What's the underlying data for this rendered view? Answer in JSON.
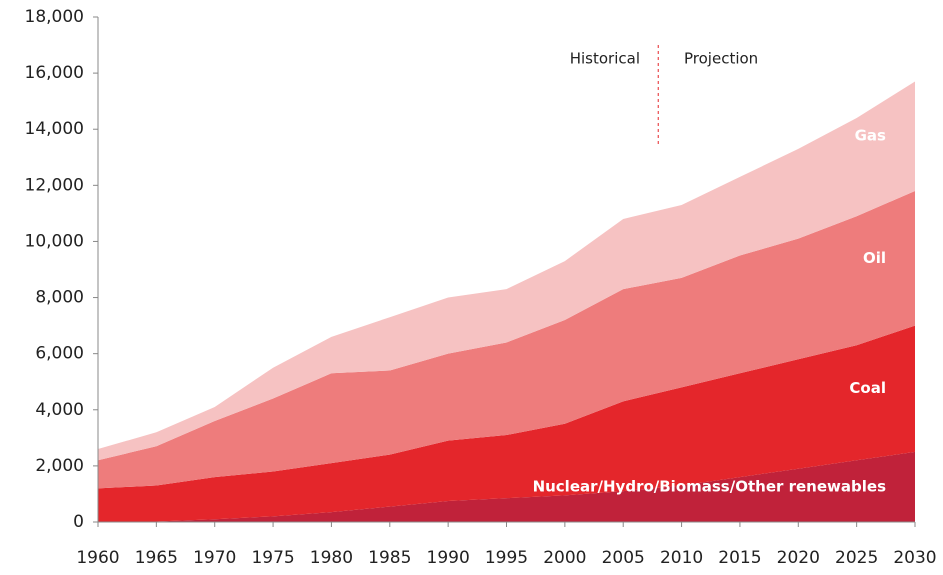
{
  "chart_data": {
    "type": "stacked_area",
    "x": [
      1960,
      1965,
      1970,
      1975,
      1980,
      1985,
      1990,
      1995,
      2000,
      2005,
      2010,
      2015,
      2020,
      2025,
      2030
    ],
    "series": [
      {
        "name": "Nuclear/Hydro/Biomass/Other renewables",
        "color": "#c0223a",
        "values": [
          0,
          20,
          100,
          200,
          350,
          550,
          750,
          850,
          950,
          1100,
          1300,
          1600,
          1900,
          2200,
          2500
        ]
      },
      {
        "name": "Coal",
        "color": "#e4262b",
        "values": [
          1200,
          1280,
          1500,
          1600,
          1750,
          1850,
          2150,
          2250,
          2550,
          3200,
          3500,
          3700,
          3900,
          4100,
          4500
        ]
      },
      {
        "name": "Oil",
        "color": "#ee7c7c",
        "values": [
          1000,
          1400,
          2000,
          2600,
          3200,
          3000,
          3100,
          3300,
          3700,
          4000,
          3900,
          4200,
          4300,
          4600,
          4800
        ]
      },
      {
        "name": "Gas",
        "color": "#f6c2c2",
        "values": [
          400,
          500,
          500,
          1100,
          1300,
          1900,
          2000,
          1900,
          2100,
          2500,
          2600,
          2800,
          3200,
          3500,
          3900
        ]
      }
    ],
    "xlim": [
      1960,
      2030
    ],
    "xticks": [
      1960,
      1965,
      1970,
      1975,
      1980,
      1985,
      1990,
      1995,
      2000,
      2005,
      2010,
      2015,
      2020,
      2025,
      2030
    ],
    "ylim": [
      0,
      18000
    ],
    "yticks": [
      0,
      {
        "value": 2000,
        "label": "2,000"
      },
      {
        "value": 4000,
        "label": "4,000"
      },
      {
        "value": 6000,
        "label": "6,000"
      },
      {
        "value": 8000,
        "label": "8,000"
      },
      {
        "value": 10000,
        "label": "10,000"
      },
      {
        "value": 12000,
        "label": "12,000"
      },
      {
        "value": 14000,
        "label": "14,000"
      },
      {
        "value": 16000,
        "label": "16,000"
      },
      {
        "value": 18000,
        "label": "18,000"
      }
    ],
    "annotations": {
      "left": "Historical",
      "right": "Projection",
      "divider_x": 2008
    }
  }
}
